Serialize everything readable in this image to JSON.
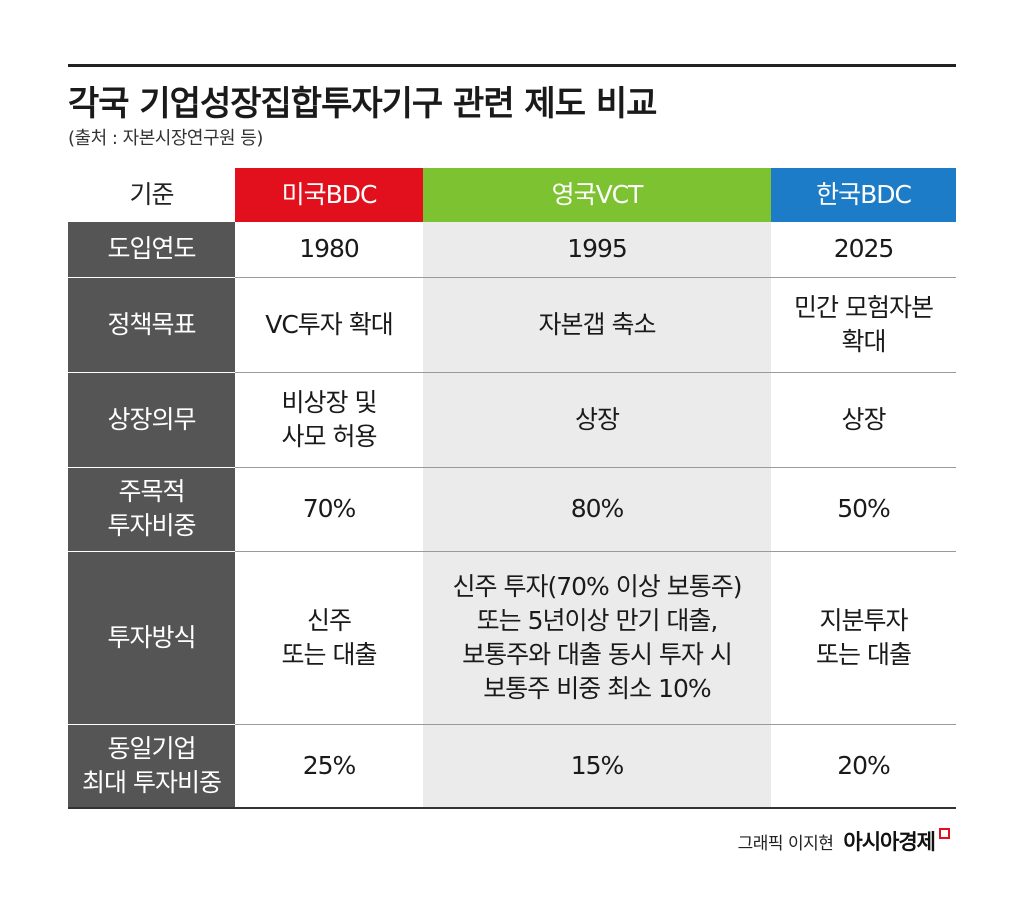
{
  "title": "각국 기업성장집합투자기구 관련 제도 비교",
  "source": "(출처 : 자본시장연구원 등)",
  "table": {
    "headers": {
      "label": "기준",
      "us": "미국BDC",
      "uk": "영국VCT",
      "kr": "한국BDC"
    },
    "colors": {
      "us": "#e2101c",
      "uk": "#7cc231",
      "kr": "#1c7cc7",
      "label_bg": "#555555",
      "uk_col_bg": "#ebebeb"
    },
    "rows": [
      {
        "label": [
          "도입연도"
        ],
        "us": [
          "1980"
        ],
        "uk": [
          "1995"
        ],
        "kr": [
          "2025"
        ]
      },
      {
        "label": [
          "정책목표"
        ],
        "us": [
          "VC투자 확대"
        ],
        "uk": [
          "자본갭 축소"
        ],
        "kr": [
          "민간 모험자본",
          "확대"
        ]
      },
      {
        "label": [
          "상장의무"
        ],
        "us": [
          "비상장 및",
          "사모 허용"
        ],
        "uk": [
          "상장"
        ],
        "kr": [
          "상장"
        ]
      },
      {
        "label": [
          "주목적",
          "투자비중"
        ],
        "us": [
          "70%"
        ],
        "uk": [
          "80%"
        ],
        "kr": [
          "50%"
        ]
      },
      {
        "label": [
          "투자방식"
        ],
        "us": [
          "신주",
          "또는 대출"
        ],
        "uk": [
          "신주 투자(70% 이상 보통주)",
          "또는 5년이상 만기 대출,",
          "보통주와 대출 동시 투자 시",
          "보통주 비중 최소 10%"
        ],
        "kr": [
          "지분투자",
          "또는 대출"
        ]
      },
      {
        "label": [
          "동일기업",
          "최대 투자비중"
        ],
        "us": [
          "25%"
        ],
        "uk": [
          "15%"
        ],
        "kr": [
          "20%"
        ]
      }
    ]
  },
  "credit": {
    "text": "그래픽 이지현",
    "brand": "아시아경제"
  }
}
